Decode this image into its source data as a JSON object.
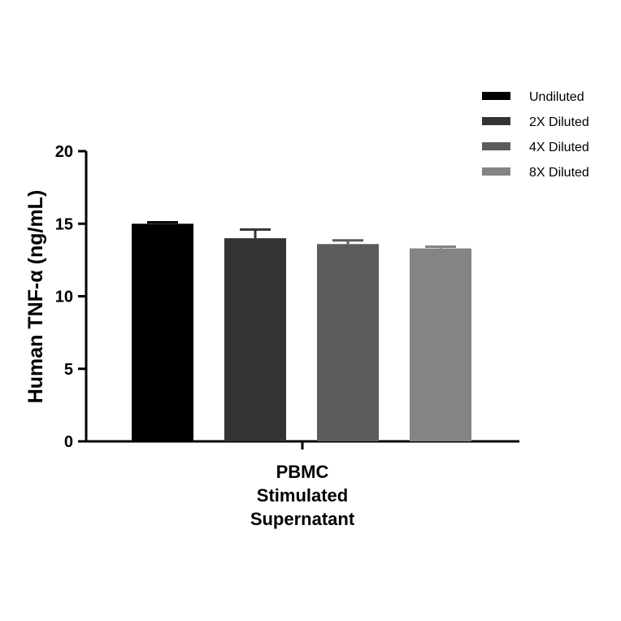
{
  "chart_data": {
    "type": "bar",
    "title": "",
    "xlabel": "",
    "ylabel": "Human TNF-α (ng/mL)",
    "ylim": [
      0,
      20
    ],
    "yticks": [
      0,
      5,
      10,
      15,
      20
    ],
    "category_lines": [
      "PBMC",
      "Stimulated",
      "Supernatant"
    ],
    "grid": false,
    "legend_position": "top-right",
    "series": [
      {
        "name": "Undiluted",
        "value": 15.0,
        "error": 0.1,
        "color": "#000000"
      },
      {
        "name": "2X Diluted",
        "value": 14.0,
        "error": 0.6,
        "color": "#333333"
      },
      {
        "name": "4X Diluted",
        "value": 13.6,
        "error": 0.25,
        "color": "#5c5c5c"
      },
      {
        "name": "8X Diluted",
        "value": 13.3,
        "error": 0.12,
        "color": "#848484"
      }
    ]
  }
}
